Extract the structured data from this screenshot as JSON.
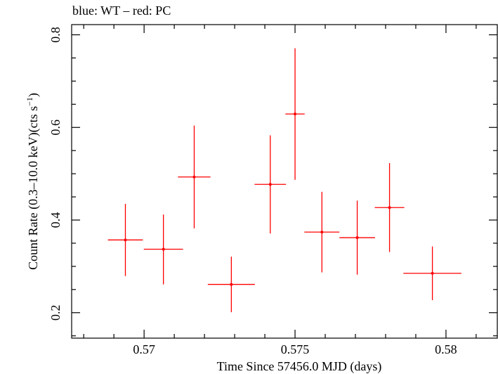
{
  "chart_data": {
    "type": "scatter",
    "title": "blue: WT – red: PC",
    "xlabel": "Time Since 57456.0 MJD (days)",
    "ylabel_main": "Count Rate (0.3–10.0 keV)(cts s",
    "ylabel_sup": "−1",
    "ylabel_close": ")",
    "xlim": [
      0.5676,
      0.5817
    ],
    "ylim": [
      0.145,
      0.822
    ],
    "xticks": [
      0.57,
      0.575,
      0.58
    ],
    "xtick_labels": [
      "0.57",
      "0.575",
      "0.58"
    ],
    "yticks": [
      0.2,
      0.4,
      0.6,
      0.8
    ],
    "ytick_labels": [
      "0.2",
      "0.4",
      "0.6",
      "0.8"
    ],
    "grid": false,
    "series": [
      {
        "color": "#ff0000",
        "points": [
          {
            "x": 0.56938,
            "y": 0.357,
            "xerr": 0.00058,
            "yerr_lo": 0.078,
            "yerr_hi": 0.078
          },
          {
            "x": 0.57064,
            "y": 0.337,
            "xerr": 0.00065,
            "yerr_lo": 0.076,
            "yerr_hi": 0.075
          },
          {
            "x": 0.57166,
            "y": 0.493,
            "xerr": 0.00054,
            "yerr_lo": 0.111,
            "yerr_hi": 0.111
          },
          {
            "x": 0.57289,
            "y": 0.261,
            "xerr": 0.00078,
            "yerr_lo": 0.06,
            "yerr_hi": 0.06
          },
          {
            "x": 0.57418,
            "y": 0.477,
            "xerr": 0.00052,
            "yerr_lo": 0.106,
            "yerr_hi": 0.106
          },
          {
            "x": 0.575,
            "y": 0.629,
            "xerr": 0.00032,
            "yerr_lo": 0.142,
            "yerr_hi": 0.142
          },
          {
            "x": 0.57589,
            "y": 0.374,
            "xerr": 0.00058,
            "yerr_lo": 0.087,
            "yerr_hi": 0.087
          },
          {
            "x": 0.57706,
            "y": 0.362,
            "xerr": 0.00059,
            "yerr_lo": 0.08,
            "yerr_hi": 0.08
          },
          {
            "x": 0.57813,
            "y": 0.427,
            "xerr": 0.00049,
            "yerr_lo": 0.096,
            "yerr_hi": 0.096
          },
          {
            "x": 0.57955,
            "y": 0.285,
            "xerr": 0.00096,
            "yerr_lo": 0.058,
            "yerr_hi": 0.058
          }
        ]
      }
    ]
  }
}
